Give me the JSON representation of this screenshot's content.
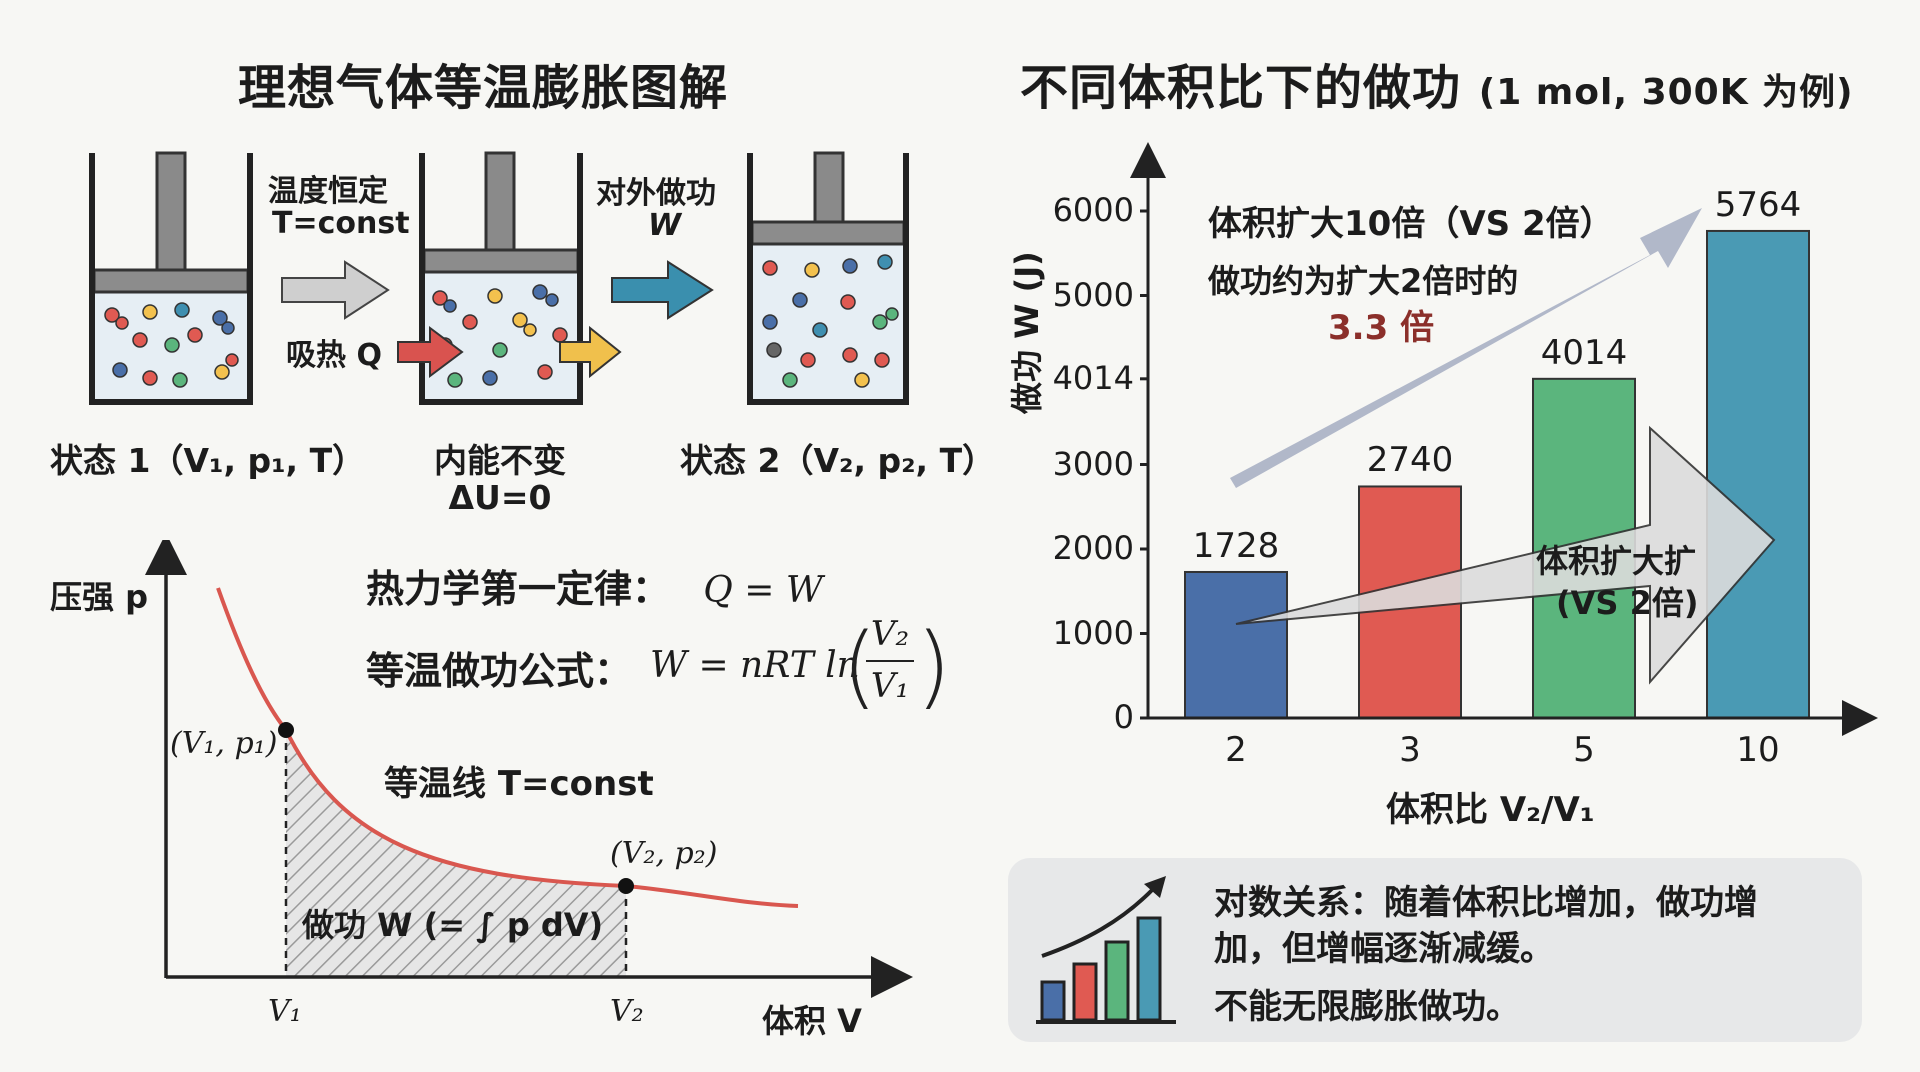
{
  "left": {
    "title": "理想气体等温膨胀图解",
    "labels": {
      "temp_const_l1": "温度恒定",
      "temp_const_l2": "T=const",
      "absorb": "吸热 Q",
      "work_out_l1": "对外做功",
      "work_out_l2": "W",
      "state1": "状态 1（V₁, p₁, T）",
      "state_mid_l1": "内能不变",
      "state_mid_l2": "ΔU=0",
      "state2": "状态 2（V₂, p₂, T）"
    },
    "pv": {
      "ylabel": "压强 p",
      "xlabel": "体积 V",
      "first_law_label": "热力学第一定律：",
      "first_law_eq": "Q = W",
      "work_formula_label": "等温做功公式：",
      "work_formula_lhs": "W = nRT ln",
      "frac_num": "V₂",
      "frac_den": "V₁",
      "isotherm_label": "等温线 T=const",
      "point1": "(V₁, p₁)",
      "point2": "(V₂, p₂)",
      "area_label": "做功 W (= ∫ p dV)",
      "tick_v1": "V₁",
      "tick_v2": "V₂"
    },
    "colors": {
      "arrow_gray": "#cfcfcf",
      "arrow_red": "#d9534f",
      "arrow_yellow": "#f0c04c",
      "arrow_teal": "#3a8fae",
      "curve": "#d9574f"
    }
  },
  "right": {
    "title": "不同体积比下的做功",
    "title_sub": "(1 mol, 300K 为例)",
    "ann_big_l1": "体积扩大10倍（VS 2倍）",
    "ann_big_l2": "做功约为扩大2倍时的",
    "ann_big_l3": "3.3 倍",
    "ann_inner_l1": "体积扩大扩",
    "ann_inner_l2": "(VS 2倍)",
    "note_l1": "对数关系：随着体积比增加，做功增",
    "note_l2": "加，但增幅逐渐减缓。",
    "note_l3": "不能无限膨胀做功。"
  },
  "chart_data": {
    "type": "bar",
    "title": "不同体积比下的做功 (1 mol, 300K 为例)",
    "xlabel": "体积比 V₂/V₁",
    "ylabel": "做功 W (J)",
    "categories": [
      "2",
      "3",
      "5",
      "10"
    ],
    "values": [
      1728,
      2740,
      4014,
      5764
    ],
    "value_labels": [
      "1728",
      "2740",
      "4014",
      "5764"
    ],
    "yticks": [
      0,
      1000,
      2000,
      3000,
      4014,
      5000,
      6000
    ],
    "ytick_labels": [
      "0",
      "1000",
      "2000",
      "3000",
      "4014",
      "5000",
      "6000"
    ],
    "ylim": [
      0,
      6000
    ],
    "colors": [
      "#4a6fa8",
      "#e05a52",
      "#5bb57d",
      "#4a9ab4"
    ],
    "grid": false
  }
}
